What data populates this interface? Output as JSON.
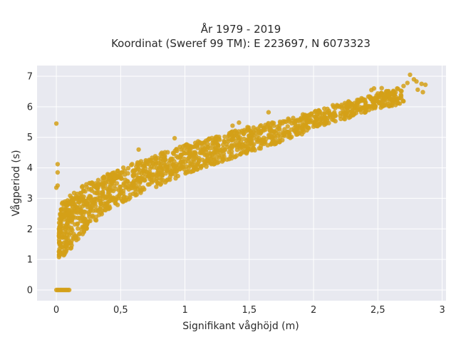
{
  "chart_data": {
    "type": "scatter",
    "title": "År 1979 - 2019",
    "subtitle": "Koordinat (Sweref 99 TM): E 223697, N 6073323",
    "xlabel": "Signifikant våghöjd (m)",
    "ylabel": "Vågperiod (s)",
    "xlim": [
      -0.15,
      3.03
    ],
    "ylim": [
      -0.35,
      7.35
    ],
    "x_ticks": [
      0,
      0.5,
      1,
      1.5,
      2,
      2.5,
      3
    ],
    "x_tick_labels": [
      "0",
      "0,5",
      "1",
      "1,5",
      "2",
      "2,5",
      "3"
    ],
    "y_ticks": [
      0,
      1,
      2,
      3,
      4,
      5,
      6,
      7
    ],
    "y_tick_labels": [
      "0",
      "1",
      "2",
      "3",
      "4",
      "5",
      "6",
      "7"
    ],
    "grid": true,
    "marker_color": "#D4A017",
    "plot_background": "#E8E9F0",
    "band": [
      {
        "x": 0.02,
        "lower": 1.05,
        "upper": 2.6
      },
      {
        "x": 0.05,
        "lower": 1.1,
        "upper": 2.9
      },
      {
        "x": 0.1,
        "lower": 1.3,
        "upper": 3.1
      },
      {
        "x": 0.2,
        "lower": 1.8,
        "upper": 3.4
      },
      {
        "x": 0.3,
        "lower": 2.25,
        "upper": 3.6
      },
      {
        "x": 0.5,
        "lower": 2.85,
        "upper": 4.0
      },
      {
        "x": 0.75,
        "lower": 3.3,
        "upper": 4.4
      },
      {
        "x": 1.0,
        "lower": 3.8,
        "upper": 4.75
      },
      {
        "x": 1.25,
        "lower": 4.15,
        "upper": 5.05
      },
      {
        "x": 1.5,
        "lower": 4.5,
        "upper": 5.35
      },
      {
        "x": 1.75,
        "lower": 4.85,
        "upper": 5.55
      },
      {
        "x": 2.0,
        "lower": 5.3,
        "upper": 5.85
      },
      {
        "x": 2.25,
        "lower": 5.6,
        "upper": 6.15
      },
      {
        "x": 2.5,
        "lower": 5.95,
        "upper": 6.45
      },
      {
        "x": 2.7,
        "lower": 6.1,
        "upper": 6.65
      }
    ],
    "zero_row": {
      "y": 0,
      "x_from": 0.0,
      "x_to": 0.1
    },
    "outliers": [
      {
        "x": 0.0,
        "y": 5.45
      },
      {
        "x": 0.01,
        "y": 4.12
      },
      {
        "x": 0.01,
        "y": 3.85
      },
      {
        "x": 0.01,
        "y": 3.42
      },
      {
        "x": 0.0,
        "y": 3.35
      },
      {
        "x": 0.02,
        "y": 2.0
      },
      {
        "x": 0.64,
        "y": 4.6
      },
      {
        "x": 0.92,
        "y": 4.97
      },
      {
        "x": 1.37,
        "y": 5.38
      },
      {
        "x": 1.42,
        "y": 5.48
      },
      {
        "x": 1.65,
        "y": 5.82
      },
      {
        "x": 1.85,
        "y": 5.22
      },
      {
        "x": 1.91,
        "y": 5.1
      },
      {
        "x": 2.15,
        "y": 6.05
      },
      {
        "x": 2.45,
        "y": 6.55
      },
      {
        "x": 2.53,
        "y": 6.61
      },
      {
        "x": 2.65,
        "y": 6.6
      },
      {
        "x": 2.7,
        "y": 6.68
      },
      {
        "x": 2.73,
        "y": 6.78
      },
      {
        "x": 2.75,
        "y": 7.05
      },
      {
        "x": 2.78,
        "y": 6.9
      },
      {
        "x": 2.8,
        "y": 6.83
      },
      {
        "x": 2.84,
        "y": 6.75
      },
      {
        "x": 2.87,
        "y": 6.72
      },
      {
        "x": 2.81,
        "y": 6.56
      },
      {
        "x": 2.85,
        "y": 6.48
      },
      {
        "x": 2.62,
        "y": 6.52
      },
      {
        "x": 2.58,
        "y": 6.38
      },
      {
        "x": 2.47,
        "y": 6.6
      },
      {
        "x": 2.27,
        "y": 6.15
      },
      {
        "x": 2.05,
        "y": 5.75
      }
    ]
  }
}
